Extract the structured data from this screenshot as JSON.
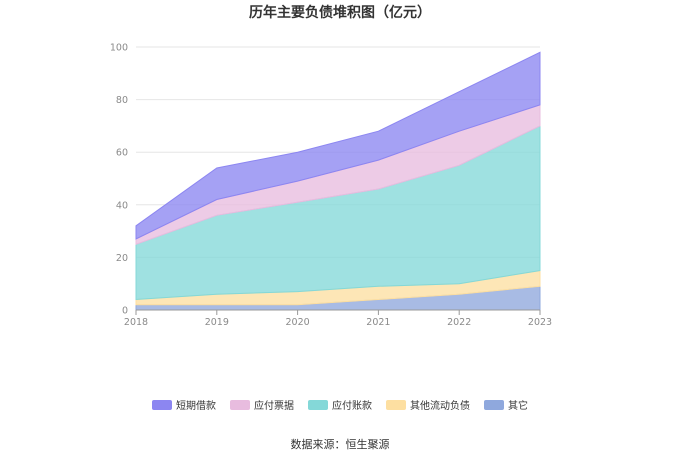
{
  "chart_data": {
    "type": "area",
    "title": "历年主要负债堆积图（亿元）",
    "categories": [
      "2018",
      "2019",
      "2020",
      "2021",
      "2022",
      "2023"
    ],
    "ylim": [
      0,
      100
    ],
    "yticks": [
      0,
      20,
      40,
      60,
      80,
      100
    ],
    "stacked": true,
    "grid": true,
    "legend_position": "bottom",
    "series": [
      {
        "name": "其它",
        "values": [
          2,
          2,
          2,
          4,
          6,
          9
        ],
        "color": "#8fa8dd"
      },
      {
        "name": "其他流动负债",
        "values": [
          2,
          4,
          5,
          5,
          4,
          6
        ],
        "color": "#fddfa1"
      },
      {
        "name": "应付账款",
        "values": [
          21,
          30,
          34,
          37,
          45,
          55
        ],
        "color": "#84d8d8"
      },
      {
        "name": "应付票据",
        "values": [
          2,
          6,
          8,
          11,
          13,
          8
        ],
        "color": "#e8bcdf"
      },
      {
        "name": "短期借款",
        "values": [
          5,
          12,
          11,
          11,
          15,
          20
        ],
        "color": "#8c86f1"
      }
    ]
  },
  "legend_order": [
    "短期借款",
    "应付票据",
    "应付账款",
    "其他流动负债",
    "其它"
  ],
  "source": "数据来源：恒生聚源"
}
